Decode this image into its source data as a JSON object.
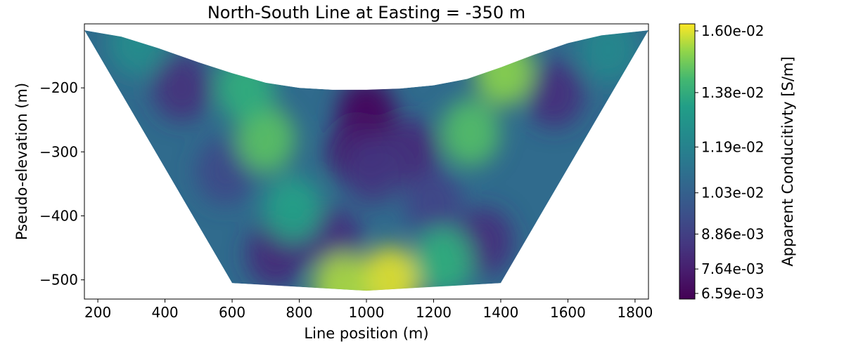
{
  "chart_data": {
    "type": "heatmap",
    "title": "North-South Line at Easting = -350 m",
    "xlabel": "Line position (m)",
    "ylabel": "Pseudo-elevation (m)",
    "colorbar_label": "Apparent Conducitivty [S/m]",
    "colormap": "viridis",
    "xlim": [
      160,
      1840
    ],
    "ylim": [
      -530,
      -100
    ],
    "x_ticks": [
      {
        "value": 200,
        "label": "200"
      },
      {
        "value": 400,
        "label": "400"
      },
      {
        "value": 600,
        "label": "600"
      },
      {
        "value": 800,
        "label": "800"
      },
      {
        "value": 1000,
        "label": "1000"
      },
      {
        "value": 1200,
        "label": "1200"
      },
      {
        "value": 1400,
        "label": "1400"
      },
      {
        "value": 1600,
        "label": "1600"
      },
      {
        "value": 1800,
        "label": "1800"
      }
    ],
    "y_ticks": [
      {
        "value": -200,
        "label": "−200"
      },
      {
        "value": -300,
        "label": "−300"
      },
      {
        "value": -400,
        "label": "−400"
      },
      {
        "value": -500,
        "label": "−500"
      }
    ],
    "colorbar_range": [
      0.00659,
      0.0162
    ],
    "colorbar_ticks": [
      {
        "value": 0.016,
        "label": "1.60e-02"
      },
      {
        "value": 0.0138,
        "label": "1.38e-02"
      },
      {
        "value": 0.0119,
        "label": "1.19e-02"
      },
      {
        "value": 0.0103,
        "label": "1.03e-02"
      },
      {
        "value": 0.00886,
        "label": "8.86e-03"
      },
      {
        "value": 0.00764,
        "label": "7.64e-03"
      },
      {
        "value": 0.00659,
        "label": "6.59e-03"
      }
    ],
    "boundary": [
      [
        160,
        -110
      ],
      [
        270,
        -120
      ],
      [
        380,
        -138
      ],
      [
        500,
        -160
      ],
      [
        600,
        -177
      ],
      [
        700,
        -192
      ],
      [
        800,
        -200
      ],
      [
        900,
        -203
      ],
      [
        1000,
        -203
      ],
      [
        1100,
        -201
      ],
      [
        1200,
        -196
      ],
      [
        1300,
        -186
      ],
      [
        1400,
        -168
      ],
      [
        1500,
        -148
      ],
      [
        1600,
        -130
      ],
      [
        1700,
        -118
      ],
      [
        1840,
        -110
      ],
      [
        1400,
        -505
      ],
      [
        1000,
        -517
      ],
      [
        600,
        -505
      ]
    ],
    "anomalies": [
      {
        "x": 1000,
        "y": -240,
        "value": 0.0068
      },
      {
        "x": 970,
        "y": -300,
        "value": 0.0075
      },
      {
        "x": 1130,
        "y": -300,
        "value": 0.008
      },
      {
        "x": 1020,
        "y": -330,
        "value": 0.0085
      },
      {
        "x": 900,
        "y": -440,
        "value": 0.0082
      },
      {
        "x": 730,
        "y": -460,
        "value": 0.008
      },
      {
        "x": 1350,
        "y": -440,
        "value": 0.0082
      },
      {
        "x": 1560,
        "y": -210,
        "value": 0.0082
      },
      {
        "x": 450,
        "y": -200,
        "value": 0.0083
      },
      {
        "x": 580,
        "y": -330,
        "value": 0.0092
      },
      {
        "x": 1200,
        "y": -380,
        "value": 0.009
      },
      {
        "x": 700,
        "y": -280,
        "value": 0.0146
      },
      {
        "x": 640,
        "y": -200,
        "value": 0.014
      },
      {
        "x": 1310,
        "y": -270,
        "value": 0.0145
      },
      {
        "x": 1410,
        "y": -175,
        "value": 0.0152
      },
      {
        "x": 1070,
        "y": -500,
        "value": 0.016
      },
      {
        "x": 930,
        "y": -510,
        "value": 0.0155
      },
      {
        "x": 780,
        "y": -390,
        "value": 0.0135
      },
      {
        "x": 1230,
        "y": -470,
        "value": 0.014
      },
      {
        "x": 320,
        "y": -130,
        "value": 0.0125
      },
      {
        "x": 1720,
        "y": -140,
        "value": 0.0122
      }
    ],
    "background_value": 0.0108,
    "grid": false
  }
}
